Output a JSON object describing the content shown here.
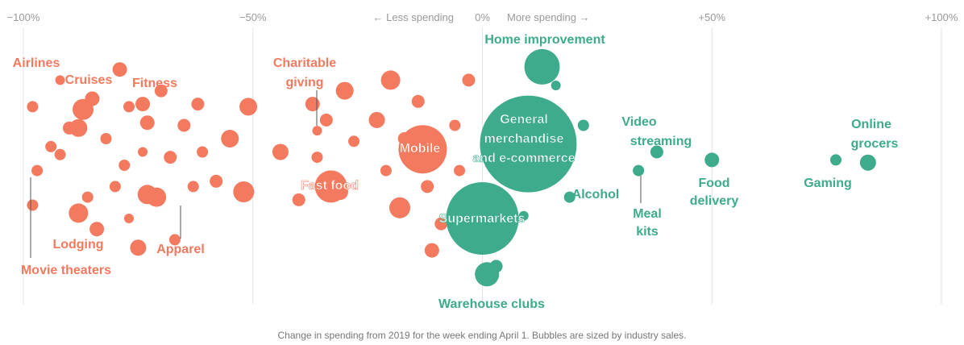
{
  "chart_data": {
    "type": "scatter",
    "title": "",
    "xlabel": "Change in spending from 2019 for the week ending April 1. Bubbles are sized by industry sales.",
    "ylabel": "",
    "xlim": [
      -100,
      100
    ],
    "x_ticks": [
      "−100%",
      "−50%",
      "0%",
      "+50%",
      "+100%"
    ],
    "direction_left": "← Less spending",
    "direction_right": "More spending →",
    "colors": {
      "decrease": "#f47a5f",
      "increase": "#3dab8c"
    },
    "labeled_points": [
      {
        "name": "Airlines",
        "x": -90,
        "size": 8
      },
      {
        "name": "Cruises",
        "x": -87,
        "size": 13
      },
      {
        "name": "Fitness",
        "x": -74,
        "size": 9
      },
      {
        "name": "Movie theaters",
        "x": -98,
        "size": 7
      },
      {
        "name": "Lodging",
        "x": -88,
        "size": 12
      },
      {
        "name": "Apparel",
        "x": -73,
        "size": 12
      },
      {
        "name": "Charitable giving",
        "x": -36,
        "size": 6
      },
      {
        "name": "Fast food",
        "x": -33,
        "size": 20
      },
      {
        "name": "Mobile",
        "x": -13,
        "size": 30
      },
      {
        "name": "Home improvement",
        "x": 13,
        "size": 22
      },
      {
        "name": "General merchandise and e-commerce",
        "x": 10,
        "size": 60
      },
      {
        "name": "Supermarkets",
        "x": 0,
        "size": 45
      },
      {
        "name": "Warehouse clubs",
        "x": 1,
        "size": 15
      },
      {
        "name": "Alcohol",
        "x": 19,
        "size": 7
      },
      {
        "name": "Video streaming",
        "x": 38,
        "size": 8
      },
      {
        "name": "Meal kits",
        "x": 34,
        "size": 7
      },
      {
        "name": "Food delivery",
        "x": 50,
        "size": 9
      },
      {
        "name": "Gaming",
        "x": 77,
        "size": 7
      },
      {
        "name": "Online grocers",
        "x": 84,
        "size": 10
      }
    ],
    "other_points": [
      {
        "x": -98,
        "y": 28,
        "size": 7
      },
      {
        "x": -97,
        "y": 52,
        "size": 7
      },
      {
        "x": -94,
        "y": 43,
        "size": 7
      },
      {
        "x": -92,
        "y": 18,
        "size": 6
      },
      {
        "x": -92,
        "y": 46,
        "size": 7
      },
      {
        "x": -88,
        "y": 36,
        "size": 11
      },
      {
        "x": -86,
        "y": 62,
        "size": 7
      },
      {
        "x": -85,
        "y": 25,
        "size": 9
      },
      {
        "x": -84,
        "y": 74,
        "size": 9
      },
      {
        "x": -82,
        "y": 40,
        "size": 7
      },
      {
        "x": -80,
        "y": 58,
        "size": 7
      },
      {
        "x": -79,
        "y": 14,
        "size": 9
      },
      {
        "x": -78,
        "y": 50,
        "size": 7
      },
      {
        "x": -77,
        "y": 70,
        "size": 6
      },
      {
        "x": -77,
        "y": 28,
        "size": 7
      },
      {
        "x": -75,
        "y": 81,
        "size": 10
      },
      {
        "x": -74,
        "y": 45,
        "size": 6
      },
      {
        "x": -73,
        "y": 34,
        "size": 9
      },
      {
        "x": -71,
        "y": 62,
        "size": 12
      },
      {
        "x": -70,
        "y": 22,
        "size": 8
      },
      {
        "x": -68,
        "y": 47,
        "size": 8
      },
      {
        "x": -67,
        "y": 78,
        "size": 7
      },
      {
        "x": -65,
        "y": 35,
        "size": 8
      },
      {
        "x": -63,
        "y": 58,
        "size": 7
      },
      {
        "x": -62,
        "y": 27,
        "size": 8
      },
      {
        "x": -61,
        "y": 45,
        "size": 7
      },
      {
        "x": -58,
        "y": 56,
        "size": 8
      },
      {
        "x": -55,
        "y": 40,
        "size": 11
      },
      {
        "x": -52,
        "y": 60,
        "size": 13
      },
      {
        "x": -51,
        "y": 28,
        "size": 11
      },
      {
        "x": -44,
        "y": 45,
        "size": 10
      },
      {
        "x": -40,
        "y": 63,
        "size": 8
      },
      {
        "x": -37,
        "y": 27,
        "size": 9
      },
      {
        "x": -36,
        "y": 47,
        "size": 7
      },
      {
        "x": -34,
        "y": 33,
        "size": 8
      },
      {
        "x": -31,
        "y": 60,
        "size": 10
      },
      {
        "x": -30,
        "y": 22,
        "size": 11
      },
      {
        "x": -28,
        "y": 41,
        "size": 7
      },
      {
        "x": -23,
        "y": 33,
        "size": 10
      },
      {
        "x": -21,
        "y": 52,
        "size": 7
      },
      {
        "x": -20,
        "y": 18,
        "size": 12
      },
      {
        "x": -18,
        "y": 66,
        "size": 13
      },
      {
        "x": -17,
        "y": 40,
        "size": 8
      },
      {
        "x": -14,
        "y": 26,
        "size": 8
      },
      {
        "x": -12,
        "y": 58,
        "size": 8
      },
      {
        "x": -11,
        "y": 82,
        "size": 9
      },
      {
        "x": -10,
        "y": 40,
        "size": 7
      },
      {
        "x": -9,
        "y": 72,
        "size": 8
      },
      {
        "x": -6,
        "y": 35,
        "size": 7
      },
      {
        "x": -5,
        "y": 52,
        "size": 7
      },
      {
        "x": -3,
        "y": 18,
        "size": 8
      },
      {
        "x": 1,
        "y": 74,
        "size": 7
      },
      {
        "x": 3,
        "y": 88,
        "size": 8
      },
      {
        "x": 7,
        "y": 43,
        "size": 6
      },
      {
        "x": 9,
        "y": 69,
        "size": 6
      },
      {
        "x": 16,
        "y": 20,
        "size": 6
      },
      {
        "x": 18,
        "y": 44,
        "size": 7
      },
      {
        "x": 22,
        "y": 35,
        "size": 7
      }
    ]
  }
}
